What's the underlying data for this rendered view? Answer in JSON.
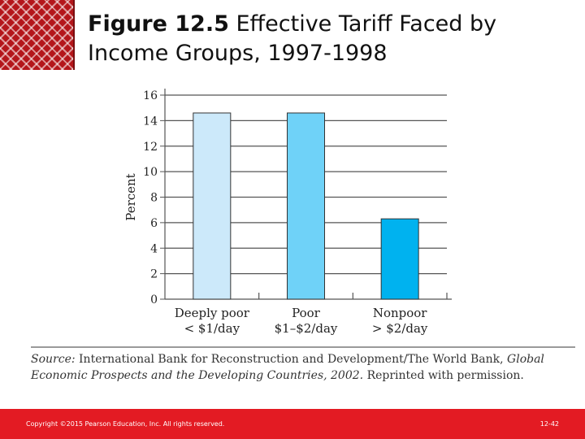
{
  "slide": {
    "title_fig": "Figure 12.5",
    "title_text": "Effective Tariff Faced by Income Groups, 1997-1998",
    "footer_copyright": "Copyright ©2015 Pearson Education, Inc. All rights reserved.",
    "page_number": "12-42"
  },
  "source": {
    "label": "Source:",
    "text1": "International Bank for Reconstruction and Development/The World Bank,",
    "italic": "Global Economic Prospects and the Developing Countries, 2002.",
    "text2": "Reprinted with permission."
  },
  "chart_data": {
    "type": "bar",
    "title": "Effective Tariff Faced by Income Groups, 1997-1998",
    "ylabel": "Percent",
    "xlabel": "",
    "ylim": [
      0,
      16
    ],
    "yticks": [
      0,
      2,
      4,
      6,
      8,
      10,
      12,
      14,
      16
    ],
    "categories": [
      {
        "line1": "Deeply poor",
        "line2": "< $1/day"
      },
      {
        "line1": "Poor",
        "line2": "$1–$2/day"
      },
      {
        "line1": "Nonpoor",
        "line2": "> $2/day"
      }
    ],
    "values": [
      14.6,
      14.6,
      6.3
    ],
    "colors": [
      "#cce9fa",
      "#6fd2f8",
      "#00b2ef"
    ],
    "grid": true
  }
}
